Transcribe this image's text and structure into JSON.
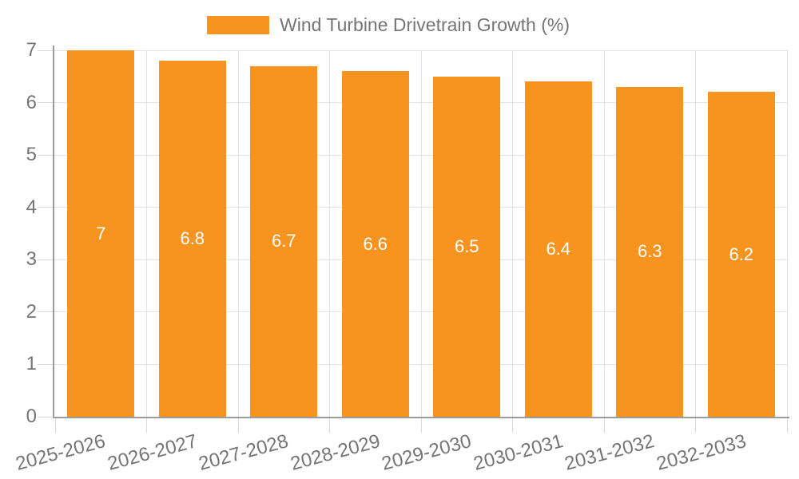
{
  "chart_data": {
    "type": "bar",
    "title": "Wind Turbine Drivetrain Growth (%)",
    "categories": [
      "2025-2026",
      "2026-2027",
      "2027-2028",
      "2028-2029",
      "2029-2030",
      "2030-2031",
      "2031-2032",
      "2032-2033"
    ],
    "values": [
      7,
      6.8,
      6.7,
      6.6,
      6.5,
      6.4,
      6.3,
      6.2
    ],
    "bar_labels": [
      "7",
      "6.8",
      "6.7",
      "6.6",
      "6.5",
      "6.4",
      "6.3",
      "6.2"
    ],
    "xlabel": "",
    "ylabel": "",
    "ylim": [
      0,
      7
    ],
    "yticks": [
      0,
      1,
      2,
      3,
      4,
      5,
      6,
      7
    ],
    "grid": "on",
    "legend_position": "top",
    "x_label_rotation_deg": -15,
    "bar_label_position": "inside-middle",
    "colors": {
      "bar": "#F79420",
      "bar_label": "#FFFFFF",
      "axis_text": "#757575",
      "grid_line": "#E3E3E3",
      "tick_line": "#DADADA",
      "axis_line": "#9B9B9B",
      "background": "#FFFFFF"
    }
  }
}
